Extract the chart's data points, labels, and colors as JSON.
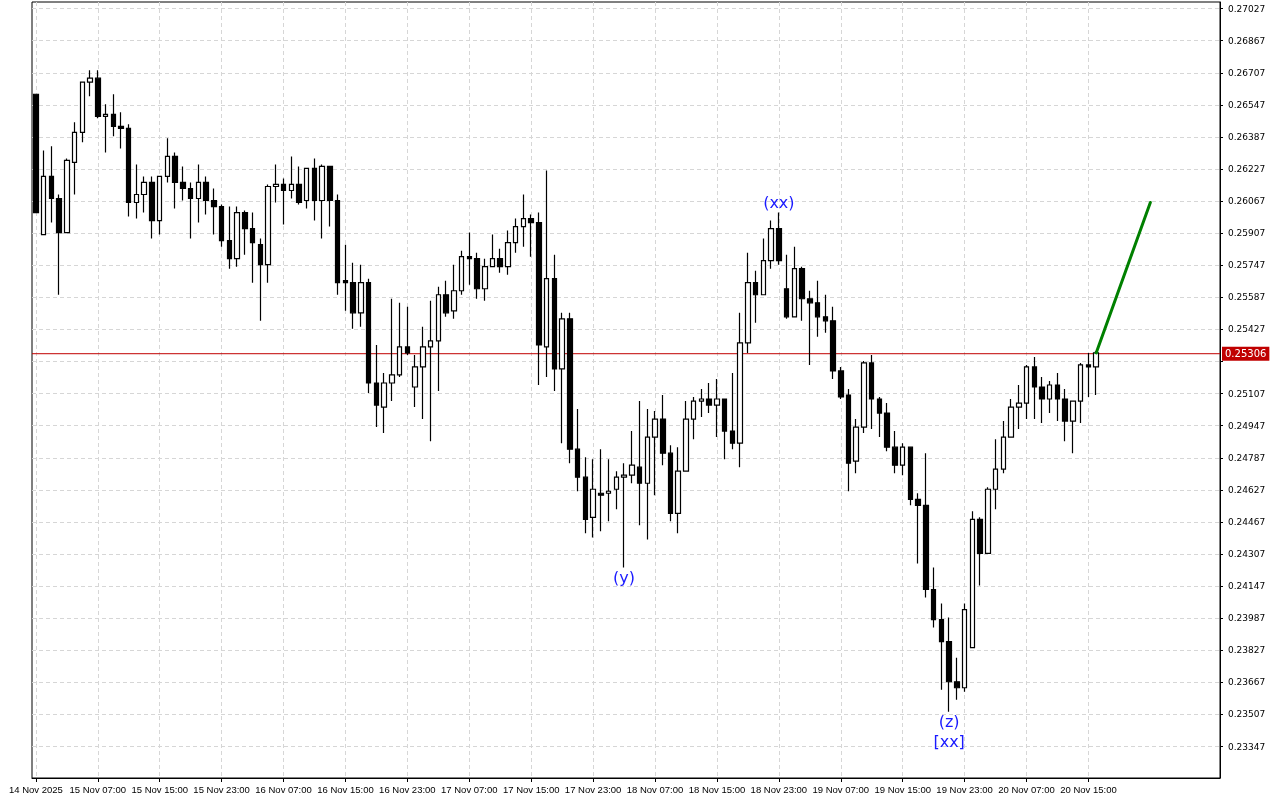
{
  "chart_data": {
    "type": "candlestick",
    "color": "#000000",
    "grid": true,
    "x": [
      "2025-11-14T23:00",
      "2025-11-15T00:00",
      "2025-11-15T01:00",
      "2025-11-15T02:00",
      "2025-11-15T03:00",
      "2025-11-15T04:00",
      "2025-11-15T05:00",
      "2025-11-15T06:00",
      "2025-11-15T07:00",
      "2025-11-15T08:00",
      "2025-11-15T09:00",
      "2025-11-15T10:00",
      "2025-11-15T11:00",
      "2025-11-15T12:00",
      "2025-11-15T13:00",
      "2025-11-15T14:00",
      "2025-11-15T15:00",
      "2025-11-15T16:00",
      "2025-11-15T17:00",
      "2025-11-15T18:00",
      "2025-11-15T19:00",
      "2025-11-15T20:00",
      "2025-11-15T21:00",
      "2025-11-15T22:00",
      "2025-11-15T23:00",
      "2025-11-16T00:00",
      "2025-11-16T01:00",
      "2025-11-16T02:00",
      "2025-11-16T03:00",
      "2025-11-16T04:00",
      "2025-11-16T05:00",
      "2025-11-16T06:00",
      "2025-11-16T07:00",
      "2025-11-16T08:00",
      "2025-11-16T09:00",
      "2025-11-16T10:00",
      "2025-11-16T11:00",
      "2025-11-16T12:00",
      "2025-11-16T13:00",
      "2025-11-16T14:00",
      "2025-11-16T15:00",
      "2025-11-16T16:00",
      "2025-11-16T17:00",
      "2025-11-16T18:00",
      "2025-11-16T19:00",
      "2025-11-16T20:00",
      "2025-11-16T21:00",
      "2025-11-16T22:00",
      "2025-11-16T23:00",
      "2025-11-17T00:00",
      "2025-11-17T01:00",
      "2025-11-17T02:00",
      "2025-11-17T03:00",
      "2025-11-17T04:00",
      "2025-11-17T05:00",
      "2025-11-17T06:00",
      "2025-11-17T07:00",
      "2025-11-17T08:00",
      "2025-11-17T09:00",
      "2025-11-17T10:00",
      "2025-11-17T11:00",
      "2025-11-17T12:00",
      "2025-11-17T13:00",
      "2025-11-17T14:00",
      "2025-11-17T15:00",
      "2025-11-17T16:00",
      "2025-11-17T17:00",
      "2025-11-17T18:00",
      "2025-11-17T19:00",
      "2025-11-17T20:00",
      "2025-11-17T21:00",
      "2025-11-17T22:00",
      "2025-11-17T23:00",
      "2025-11-18T00:00",
      "2025-11-18T01:00",
      "2025-11-18T02:00",
      "2025-11-18T03:00",
      "2025-11-18T04:00",
      "2025-11-18T05:00",
      "2025-11-18T06:00",
      "2025-11-18T07:00",
      "2025-11-18T08:00",
      "2025-11-18T09:00",
      "2025-11-18T10:00",
      "2025-11-18T11:00",
      "2025-11-18T12:00",
      "2025-11-18T13:00",
      "2025-11-18T14:00",
      "2025-11-18T15:00",
      "2025-11-18T16:00",
      "2025-11-18T17:00",
      "2025-11-18T18:00",
      "2025-11-18T19:00",
      "2025-11-18T20:00",
      "2025-11-18T21:00",
      "2025-11-18T22:00",
      "2025-11-18T23:00",
      "2025-11-19T00:00",
      "2025-11-19T01:00",
      "2025-11-19T02:00",
      "2025-11-19T03:00",
      "2025-11-19T04:00",
      "2025-11-19T05:00",
      "2025-11-19T06:00",
      "2025-11-19T07:00",
      "2025-11-19T08:00",
      "2025-11-19T09:00",
      "2025-11-19T10:00",
      "2025-11-19T11:00",
      "2025-11-19T12:00",
      "2025-11-19T13:00",
      "2025-11-19T14:00",
      "2025-11-19T15:00",
      "2025-11-19T16:00",
      "2025-11-19T17:00",
      "2025-11-19T18:00",
      "2025-11-19T19:00",
      "2025-11-19T20:00",
      "2025-11-19T21:00",
      "2025-11-19T22:00",
      "2025-11-19T23:00",
      "2025-11-20T00:00",
      "2025-11-20T01:00",
      "2025-11-20T02:00",
      "2025-11-20T03:00",
      "2025-11-20T04:00",
      "2025-11-20T05:00",
      "2025-11-20T06:00",
      "2025-11-20T07:00",
      "2025-11-20T08:00",
      "2025-11-20T09:00",
      "2025-11-20T10:00",
      "2025-11-20T11:00",
      "2025-11-20T12:00",
      "2025-11-20T13:00",
      "2025-11-20T14:00",
      "2025-11-20T15:00",
      "2025-11-20T16:00"
    ],
    "ohlc": [
      [
        0.266,
        0.266,
        0.2601,
        0.2601
      ],
      [
        0.259,
        0.2632,
        0.259,
        0.2619
      ],
      [
        0.2619,
        0.2634,
        0.2596,
        0.2608
      ],
      [
        0.2608,
        0.261,
        0.256,
        0.2591
      ],
      [
        0.2591,
        0.2628,
        0.2591,
        0.2627
      ],
      [
        0.2626,
        0.2646,
        0.261,
        0.2641
      ],
      [
        0.2641,
        0.2666,
        0.2636,
        0.2666
      ],
      [
        0.2666,
        0.2672,
        0.2659,
        0.2668
      ],
      [
        0.2668,
        0.2672,
        0.2648,
        0.2649
      ],
      [
        0.2649,
        0.2655,
        0.2631,
        0.265
      ],
      [
        0.265,
        0.266,
        0.2639,
        0.2644
      ],
      [
        0.2644,
        0.2651,
        0.2633,
        0.2643
      ],
      [
        0.2643,
        0.2645,
        0.2599,
        0.2606
      ],
      [
        0.2606,
        0.2625,
        0.2598,
        0.261
      ],
      [
        0.261,
        0.2619,
        0.2601,
        0.2616
      ],
      [
        0.2616,
        0.2619,
        0.2588,
        0.2597
      ],
      [
        0.2597,
        0.2619,
        0.259,
        0.2619
      ],
      [
        0.2619,
        0.2638,
        0.2616,
        0.2629
      ],
      [
        0.2629,
        0.2631,
        0.2603,
        0.2616
      ],
      [
        0.2616,
        0.2624,
        0.2607,
        0.2613
      ],
      [
        0.2613,
        0.2616,
        0.2588,
        0.2608
      ],
      [
        0.2608,
        0.2625,
        0.2596,
        0.2616
      ],
      [
        0.2616,
        0.2619,
        0.26,
        0.2607
      ],
      [
        0.2607,
        0.2613,
        0.259,
        0.2604
      ],
      [
        0.2604,
        0.2605,
        0.2584,
        0.2587
      ],
      [
        0.2587,
        0.2604,
        0.2573,
        0.2578
      ],
      [
        0.2578,
        0.2604,
        0.2574,
        0.2601
      ],
      [
        0.2601,
        0.2602,
        0.258,
        0.2593
      ],
      [
        0.2593,
        0.2601,
        0.2566,
        0.2586
      ],
      [
        0.2585,
        0.2588,
        0.2547,
        0.2575
      ],
      [
        0.2575,
        0.2615,
        0.2566,
        0.2614
      ],
      [
        0.2614,
        0.2625,
        0.2606,
        0.2615
      ],
      [
        0.2615,
        0.2618,
        0.2595,
        0.2612
      ],
      [
        0.2612,
        0.2629,
        0.2608,
        0.2615
      ],
      [
        0.2615,
        0.2624,
        0.2605,
        0.2606
      ],
      [
        0.2607,
        0.2623,
        0.2603,
        0.2623
      ],
      [
        0.2623,
        0.2628,
        0.2597,
        0.2607
      ],
      [
        0.2607,
        0.2625,
        0.2588,
        0.2624
      ],
      [
        0.2624,
        0.2624,
        0.2594,
        0.2607
      ],
      [
        0.2607,
        0.261,
        0.256,
        0.2566
      ],
      [
        0.2567,
        0.2585,
        0.2552,
        0.2566
      ],
      [
        0.2566,
        0.2576,
        0.2543,
        0.2551
      ],
      [
        0.2551,
        0.2575,
        0.2544,
        0.2566
      ],
      [
        0.2566,
        0.2568,
        0.2511,
        0.2516
      ],
      [
        0.2516,
        0.2535,
        0.2494,
        0.2505
      ],
      [
        0.2504,
        0.2521,
        0.2491,
        0.2516
      ],
      [
        0.2516,
        0.2558,
        0.2507,
        0.252
      ],
      [
        0.252,
        0.2556,
        0.2519,
        0.2534
      ],
      [
        0.2534,
        0.2554,
        0.253,
        0.2531
      ],
      [
        0.2514,
        0.253,
        0.2504,
        0.2524
      ],
      [
        0.2524,
        0.2544,
        0.2498,
        0.2534
      ],
      [
        0.2534,
        0.2557,
        0.2487,
        0.2537
      ],
      [
        0.2537,
        0.2564,
        0.2512,
        0.256
      ],
      [
        0.256,
        0.2567,
        0.2549,
        0.2551
      ],
      [
        0.2552,
        0.2575,
        0.2548,
        0.2562
      ],
      [
        0.2562,
        0.2582,
        0.256,
        0.2579
      ],
      [
        0.2579,
        0.2591,
        0.2565,
        0.2578
      ],
      [
        0.2578,
        0.2581,
        0.2558,
        0.2563
      ],
      [
        0.2563,
        0.2578,
        0.2557,
        0.2574
      ],
      [
        0.2574,
        0.259,
        0.2574,
        0.2578
      ],
      [
        0.2578,
        0.2583,
        0.2571,
        0.2574
      ],
      [
        0.2574,
        0.2592,
        0.257,
        0.2586
      ],
      [
        0.2586,
        0.2598,
        0.2581,
        0.2594
      ],
      [
        0.2594,
        0.261,
        0.2584,
        0.2598
      ],
      [
        0.2598,
        0.26,
        0.2579,
        0.2596
      ],
      [
        0.2596,
        0.2601,
        0.2515,
        0.2535
      ],
      [
        0.2534,
        0.2622,
        0.2519,
        0.2568
      ],
      [
        0.2568,
        0.258,
        0.2512,
        0.2523
      ],
      [
        0.2523,
        0.2551,
        0.2486,
        0.2548
      ],
      [
        0.2548,
        0.2551,
        0.2476,
        0.2483
      ],
      [
        0.2483,
        0.2503,
        0.2462,
        0.2469
      ],
      [
        0.2469,
        0.2479,
        0.2441,
        0.2448
      ],
      [
        0.2449,
        0.2478,
        0.2439,
        0.2463
      ],
      [
        0.2461,
        0.2483,
        0.2442,
        0.246
      ],
      [
        0.2461,
        0.2478,
        0.2447,
        0.2462
      ],
      [
        0.2463,
        0.2472,
        0.2453,
        0.2469
      ],
      [
        0.2469,
        0.2476,
        0.2424,
        0.247
      ],
      [
        0.247,
        0.2492,
        0.2466,
        0.2475
      ],
      [
        0.2474,
        0.2507,
        0.2445,
        0.2466
      ],
      [
        0.2466,
        0.2503,
        0.2438,
        0.2489
      ],
      [
        0.2489,
        0.2502,
        0.246,
        0.2498
      ],
      [
        0.2498,
        0.251,
        0.2475,
        0.2481
      ],
      [
        0.2481,
        0.2485,
        0.2447,
        0.2451
      ],
      [
        0.2451,
        0.2484,
        0.2441,
        0.2472
      ],
      [
        0.2472,
        0.2507,
        0.2472,
        0.2498
      ],
      [
        0.2498,
        0.2509,
        0.2488,
        0.2507
      ],
      [
        0.2507,
        0.2513,
        0.2499,
        0.2508
      ],
      [
        0.2508,
        0.2516,
        0.2501,
        0.2505
      ],
      [
        0.2505,
        0.2518,
        0.2489,
        0.2508
      ],
      [
        0.2508,
        0.2508,
        0.2478,
        0.2492
      ],
      [
        0.2492,
        0.2521,
        0.2483,
        0.2486
      ],
      [
        0.2486,
        0.2551,
        0.2474,
        0.2536
      ],
      [
        0.2536,
        0.2581,
        0.2531,
        0.2566
      ],
      [
        0.2566,
        0.2572,
        0.2546,
        0.256
      ],
      [
        0.256,
        0.2588,
        0.256,
        0.2577
      ],
      [
        0.2577,
        0.2597,
        0.2573,
        0.2593
      ],
      [
        0.2593,
        0.2601,
        0.2575,
        0.2577
      ],
      [
        0.2563,
        0.258,
        0.2548,
        0.2549
      ],
      [
        0.2549,
        0.2584,
        0.2549,
        0.2573
      ],
      [
        0.2573,
        0.2574,
        0.2547,
        0.2558
      ],
      [
        0.2558,
        0.2562,
        0.2525,
        0.2556
      ],
      [
        0.2556,
        0.2567,
        0.2539,
        0.2549
      ],
      [
        0.2549,
        0.256,
        0.2541,
        0.2547
      ],
      [
        0.2547,
        0.2554,
        0.2518,
        0.2522
      ],
      [
        0.2522,
        0.2524,
        0.2508,
        0.2509
      ],
      [
        0.251,
        0.2513,
        0.2462,
        0.2476
      ],
      [
        0.2477,
        0.2498,
        0.2471,
        0.2494
      ],
      [
        0.2494,
        0.2527,
        0.2491,
        0.2526
      ],
      [
        0.2526,
        0.253,
        0.2493,
        0.2508
      ],
      [
        0.2508,
        0.2509,
        0.2489,
        0.2501
      ],
      [
        0.2501,
        0.2506,
        0.2482,
        0.2484
      ],
      [
        0.2484,
        0.2492,
        0.2471,
        0.2475
      ],
      [
        0.2475,
        0.2486,
        0.247,
        0.2484
      ],
      [
        0.2484,
        0.2484,
        0.2455,
        0.2458
      ],
      [
        0.2458,
        0.2461,
        0.2426,
        0.2455
      ],
      [
        0.2455,
        0.2481,
        0.2409,
        0.2413
      ],
      [
        0.2413,
        0.2424,
        0.2394,
        0.2398
      ],
      [
        0.2398,
        0.2406,
        0.2363,
        0.2387
      ],
      [
        0.2387,
        0.2399,
        0.2352,
        0.2367
      ],
      [
        0.2367,
        0.2379,
        0.2358,
        0.2364
      ],
      [
        0.2364,
        0.2406,
        0.2362,
        0.2403
      ],
      [
        0.2384,
        0.2452,
        0.2384,
        0.2448
      ],
      [
        0.2448,
        0.2449,
        0.2415,
        0.2431
      ],
      [
        0.2431,
        0.2464,
        0.2431,
        0.2463
      ],
      [
        0.2463,
        0.2488,
        0.2453,
        0.2473
      ],
      [
        0.2473,
        0.2497,
        0.2471,
        0.2489
      ],
      [
        0.2489,
        0.2508,
        0.2489,
        0.2504
      ],
      [
        0.2504,
        0.2515,
        0.2493,
        0.2506
      ],
      [
        0.2506,
        0.2525,
        0.2498,
        0.2524
      ],
      [
        0.2524,
        0.2529,
        0.2498,
        0.2514
      ],
      [
        0.2514,
        0.2519,
        0.2496,
        0.2508
      ],
      [
        0.2508,
        0.2517,
        0.2501,
        0.2515
      ],
      [
        0.2515,
        0.2521,
        0.2497,
        0.2508
      ],
      [
        0.2508,
        0.2513,
        0.2487,
        0.2497
      ],
      [
        0.2497,
        0.2507,
        0.2481,
        0.2507
      ],
      [
        0.2507,
        0.2526,
        0.2496,
        0.2525
      ],
      [
        0.2525,
        0.2531,
        0.2509,
        0.2524
      ],
      [
        0.2524,
        0.2532,
        0.251,
        0.2531
      ]
    ],
    "series": [
      {
        "type": "line",
        "color": "#008000",
        "x": [
          "2025-11-20T16:00",
          "2025-11-20T23:00"
        ],
        "values": [
          0.2531,
          0.2606
        ]
      }
    ],
    "xlim": [
      "2025-11-14T22:30",
      "2025-11-21T08:00"
    ],
    "xticks": [
      {
        "value": "2025-11-14T23:00",
        "label": "14 Nov 2025"
      },
      {
        "value": "2025-11-15T07:00",
        "label": "15 Nov 07:00"
      },
      {
        "value": "2025-11-15T15:00",
        "label": "15 Nov 15:00"
      },
      {
        "value": "2025-11-15T23:00",
        "label": "15 Nov 23:00"
      },
      {
        "value": "2025-11-16T07:00",
        "label": "16 Nov 07:00"
      },
      {
        "value": "2025-11-16T15:00",
        "label": "16 Nov 15:00"
      },
      {
        "value": "2025-11-16T23:00",
        "label": "16 Nov 23:00"
      },
      {
        "value": "2025-11-17T07:00",
        "label": "17 Nov 07:00"
      },
      {
        "value": "2025-11-17T15:00",
        "label": "17 Nov 15:00"
      },
      {
        "value": "2025-11-17T23:00",
        "label": "17 Nov 23:00"
      },
      {
        "value": "2025-11-18T07:00",
        "label": "18 Nov 07:00"
      },
      {
        "value": "2025-11-18T15:00",
        "label": "18 Nov 15:00"
      },
      {
        "value": "2025-11-18T23:00",
        "label": "18 Nov 23:00"
      },
      {
        "value": "2025-11-19T07:00",
        "label": "19 Nov 07:00"
      },
      {
        "value": "2025-11-19T15:00",
        "label": "19 Nov 15:00"
      },
      {
        "value": "2025-11-19T23:00",
        "label": "19 Nov 23:00"
      },
      {
        "value": "2025-11-20T07:00",
        "label": "20 Nov 07:00"
      },
      {
        "value": "2025-11-20T15:00",
        "label": "20 Nov 15:00"
      }
    ],
    "ylim": [
      0.2319,
      0.2706
    ],
    "yticks": [
      0.23347,
      0.23507,
      0.23667,
      0.23827,
      0.23987,
      0.24147,
      0.24307,
      0.24467,
      0.24627,
      0.24787,
      0.24947,
      0.25107,
      {
        "value": 0.25267,
        "label": null
      },
      0.25427,
      0.25587,
      0.25747,
      0.25907,
      0.26067,
      0.26227,
      0.26387,
      0.26547,
      0.26707,
      0.26867,
      0.27027
    ],
    "ref_lines": [
      {
        "axis": "y",
        "value": 0.25306,
        "label": "0.25306",
        "color": "#c00000"
      }
    ],
    "annotations": [
      {
        "text": "(xx)",
        "x": "2025-11-18T23:00",
        "y": 0.2601
      },
      {
        "text": "(y)",
        "x": "2025-11-18T03:00",
        "y": 0.2424
      },
      {
        "text": "(z)",
        "x": "2025-11-19T21:00",
        "y": 0.2352
      },
      {
        "text": "[xx]",
        "x": "2025-11-19T21:00",
        "y": 0.2352
      }
    ]
  }
}
